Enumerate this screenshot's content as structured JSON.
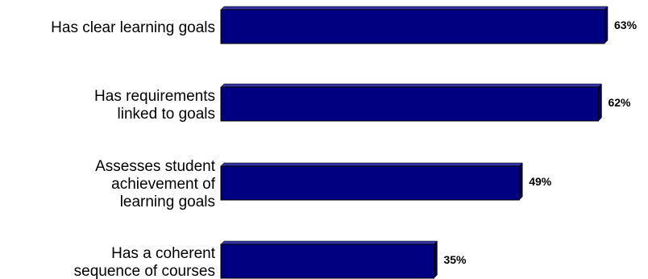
{
  "chart_data": {
    "type": "bar",
    "orientation": "horizontal",
    "categories": [
      [
        "Has clear learning goals"
      ],
      [
        "Has requirements",
        "linked to goals"
      ],
      [
        "Assesses student",
        "achievement of",
        "learning goals"
      ],
      [
        "Has a coherent",
        "sequence of courses"
      ]
    ],
    "values": [
      63,
      62,
      49,
      35
    ],
    "value_labels": [
      "63%",
      "62%",
      "49%",
      "35%"
    ],
    "xlim": [
      0,
      63
    ],
    "grid": false,
    "legend": "none",
    "colors": {
      "bar_front": "#000080",
      "bar_top": "#3333a6",
      "bar_side": "#00004d",
      "bar_edge": "#000000"
    }
  }
}
